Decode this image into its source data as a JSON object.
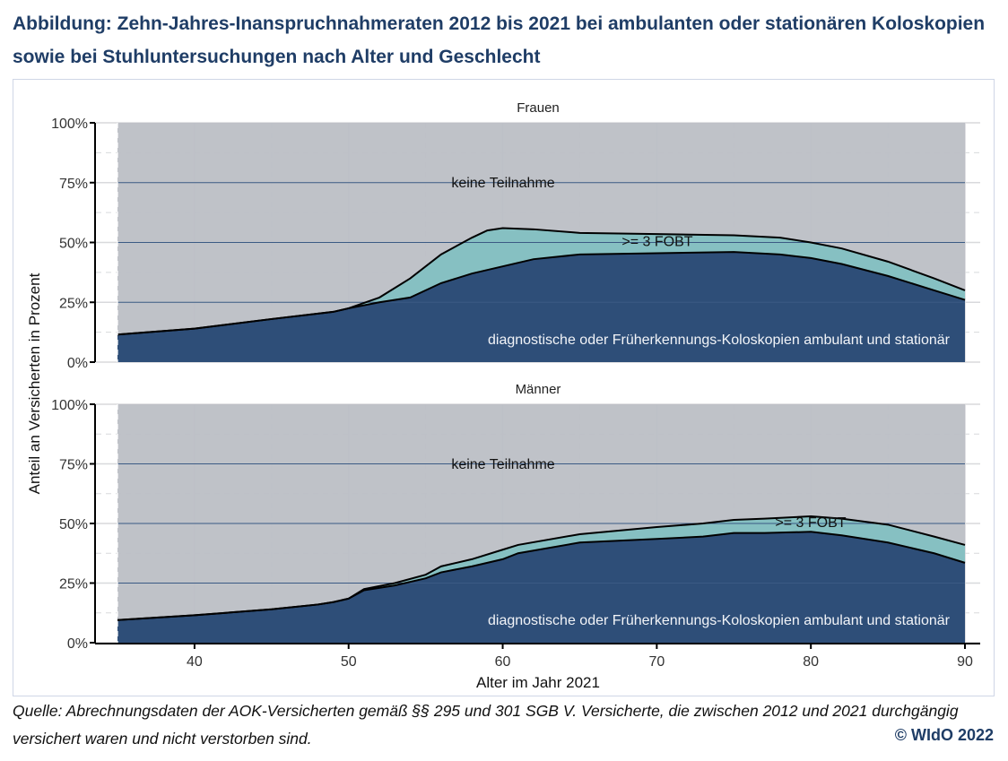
{
  "title": "Abbildung: Zehn-Jahres-Inanspruchnahmeraten 2012 bis 2021 bei ambulanten oder stationären Koloskopien sowie bei Stuhluntersuchungen nach Alter und Geschlecht",
  "source": "Quelle: Abrechnungsdaten der AOK-Versicherten gemäß §§ 295 und 301 SGB V. Versicherte, die zwischen 2012 und 2021 durchgängig versichert waren und nicht verstorben sind.",
  "copyright": "© WIdO 2022",
  "colors": {
    "none": "#bcbfc5",
    "fobt": "#86c0c2",
    "colo": "#2e4e78"
  },
  "chart_data": {
    "type": "area",
    "xlabel": "Alter im Jahr 2021",
    "ylabel": "Anteil an Versicherten in Prozent",
    "xlim": [
      35,
      90
    ],
    "ylim": [
      0,
      100
    ],
    "xticks": [
      40,
      50,
      60,
      70,
      80,
      90
    ],
    "xtick_labels": [
      "40",
      "50",
      "60",
      "70",
      "80",
      "90"
    ],
    "yticks": [
      0,
      25,
      50,
      75,
      100
    ],
    "ytick_labels": [
      "0%",
      "25%",
      "50%",
      "75%",
      "100%"
    ],
    "series_labels": {
      "none": "keine Teilnahme",
      "fobt": ">= 3 FOBT",
      "colo": "diagnostische oder Früherkennungs-Koloskopien ambulant und stationär"
    },
    "panels": [
      {
        "name": "Frauen",
        "age": [
          35,
          40,
          45,
          49,
          50,
          52,
          54,
          56,
          58,
          59,
          60,
          62,
          65,
          70,
          75,
          78,
          80,
          82,
          85,
          88,
          90
        ],
        "colo": [
          11.5,
          14,
          18,
          21,
          22.5,
          25,
          27,
          33,
          37,
          38.5,
          40,
          43,
          45,
          45.5,
          46,
          45,
          43.5,
          41,
          36,
          30,
          26
        ],
        "total": [
          11.5,
          14,
          18,
          21,
          22.5,
          27,
          35,
          45,
          52,
          55,
          56,
          55.5,
          54,
          53.5,
          53,
          52,
          50,
          47.5,
          42,
          35,
          30
        ]
      },
      {
        "name": "Männer",
        "age": [
          35,
          40,
          45,
          48,
          49,
          50,
          51,
          53,
          55,
          56,
          58,
          60,
          61,
          65,
          70,
          73,
          75,
          77,
          80,
          82,
          85,
          88,
          90
        ],
        "colo": [
          9.5,
          11.5,
          14,
          16,
          17,
          18.5,
          22,
          24,
          27,
          29.5,
          32,
          35,
          37.5,
          42,
          43.5,
          44.5,
          46,
          46,
          46.5,
          45,
          42,
          37.5,
          33.5
        ],
        "total": [
          9.5,
          11.5,
          14,
          16,
          17,
          18.5,
          22.5,
          25,
          28.5,
          32,
          35,
          39,
          41,
          45.5,
          48.5,
          50,
          51.5,
          52,
          53,
          52,
          49.5,
          44.5,
          41
        ]
      }
    ]
  }
}
